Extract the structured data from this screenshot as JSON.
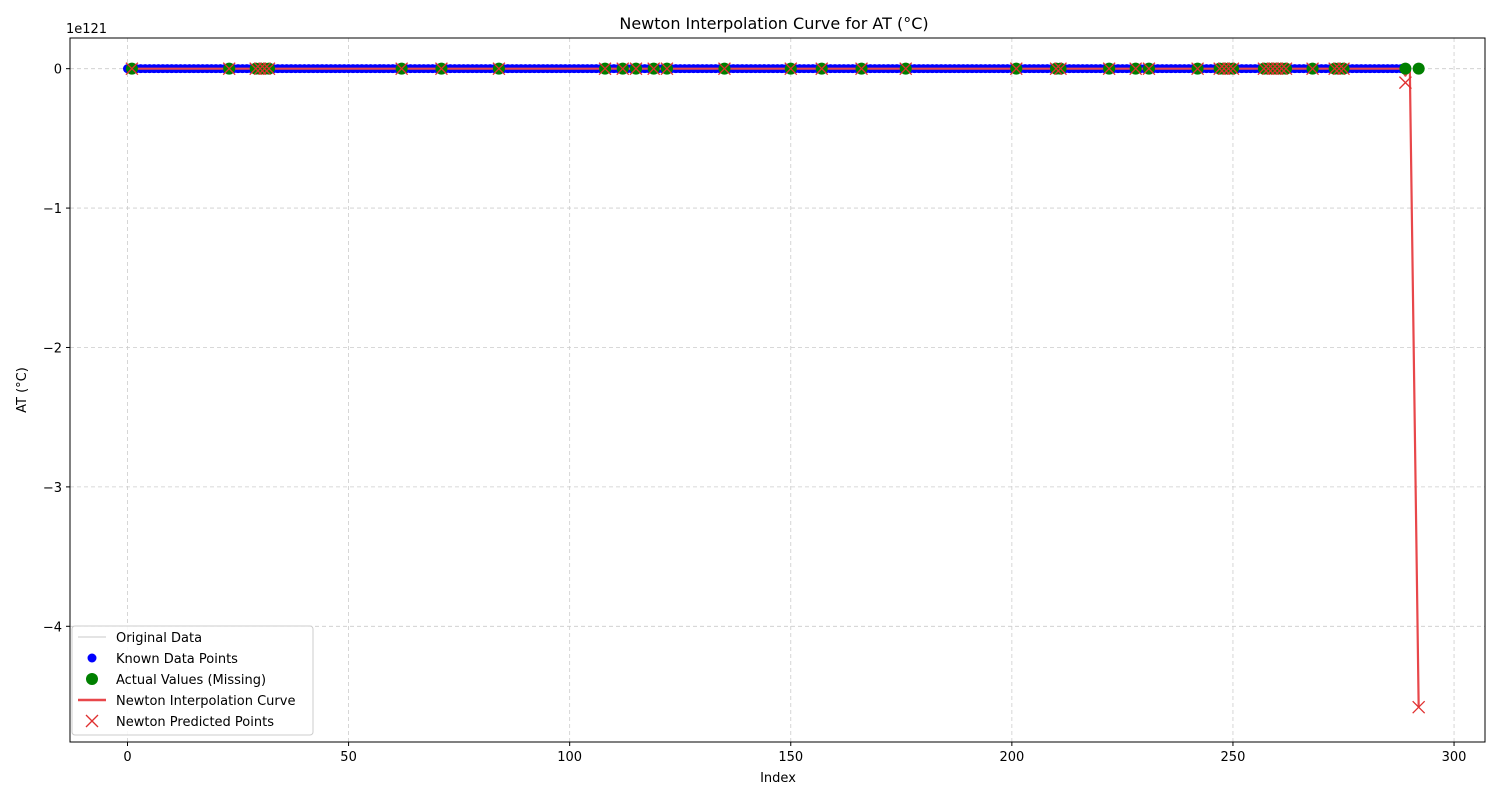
{
  "chart_data": {
    "type": "line",
    "title": "Newton Interpolation Curve for AT (°C)",
    "xlabel": "Index",
    "ylabel": "AT (°C)",
    "y_offset_text": "1e121",
    "xlim": [
      -13,
      307
    ],
    "ylim": [
      -4.83,
      0.22
    ],
    "x_ticks": [
      0,
      50,
      100,
      150,
      200,
      250,
      300
    ],
    "y_ticks": [
      0,
      -1,
      -2,
      -3,
      -4
    ],
    "y_tick_labels": [
      "0",
      "−1",
      "−2",
      "−3",
      "−4"
    ],
    "grid": true,
    "legend_position": "lower-left",
    "colors": {
      "original": "#c8c8c8",
      "known": "#0000ff",
      "actual": "#008000",
      "newton_curve": "#e8474a",
      "newton_points": "#e03030"
    },
    "series": [
      {
        "name": "Original Data",
        "kind": "line",
        "x_range": [
          0,
          292
        ],
        "value": 0
      },
      {
        "name": "Known Data Points",
        "kind": "scatter",
        "x_range": [
          0,
          289
        ],
        "value": 0
      },
      {
        "name": "Actual Values (Missing)",
        "kind": "scatter",
        "x": [
          1,
          23,
          29,
          30,
          31,
          32,
          62,
          71,
          84,
          108,
          112,
          115,
          119,
          122,
          135,
          150,
          157,
          166,
          176,
          201,
          210,
          211,
          222,
          228,
          231,
          242,
          247,
          248,
          249,
          250,
          257,
          258,
          259,
          260,
          261,
          262,
          268,
          273,
          274,
          275,
          289,
          292
        ],
        "y": [
          0,
          0,
          0,
          0,
          0,
          0,
          0,
          0,
          0,
          0,
          0,
          0,
          0,
          0,
          0,
          0,
          0,
          0,
          0,
          0,
          0,
          0,
          0,
          0,
          0,
          0,
          0,
          0,
          0,
          0,
          0,
          0,
          0,
          0,
          0,
          0,
          0,
          0,
          0,
          0,
          0,
          0
        ]
      },
      {
        "name": "Newton Interpolation Curve",
        "kind": "line",
        "x": [
          0,
          288,
          289,
          290,
          292
        ],
        "y": [
          0,
          0,
          -0.05,
          0,
          -4.58
        ]
      },
      {
        "name": "Newton Predicted Points",
        "kind": "scatter",
        "x": [
          1,
          23,
          29,
          30,
          31,
          32,
          62,
          71,
          84,
          108,
          112,
          115,
          119,
          122,
          135,
          150,
          157,
          166,
          176,
          201,
          210,
          211,
          222,
          228,
          231,
          242,
          247,
          248,
          249,
          250,
          257,
          258,
          259,
          260,
          261,
          262,
          268,
          273,
          274,
          275,
          289,
          292
        ],
        "y": [
          0,
          0,
          0,
          0,
          0,
          0,
          0,
          0,
          0,
          0,
          0,
          0,
          0,
          0,
          0,
          0,
          0,
          0,
          0,
          0,
          0,
          0,
          0,
          0,
          0,
          0,
          0,
          0,
          0,
          0,
          0,
          0,
          0,
          0,
          0,
          0,
          0,
          0,
          0,
          0,
          -0.1,
          -4.58
        ]
      }
    ]
  }
}
